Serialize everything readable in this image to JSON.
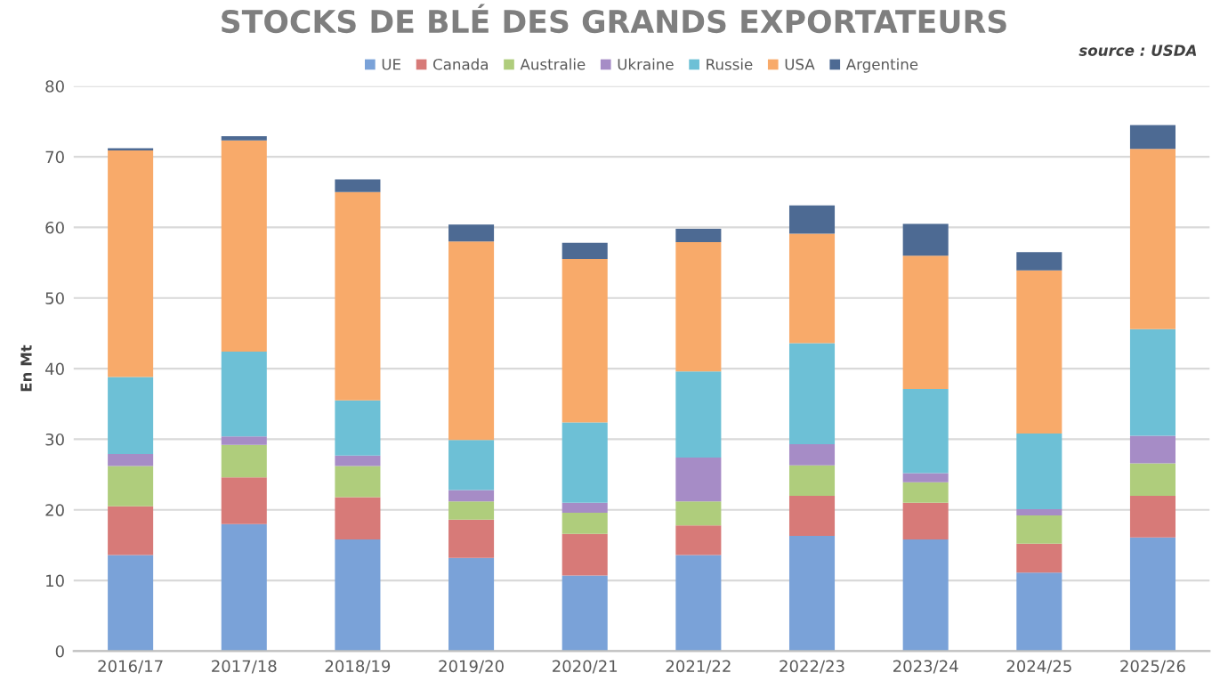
{
  "chart_data": {
    "type": "bar",
    "stacked": true,
    "title": "STOCKS DE BLÉ DES GRANDS EXPORTATEURS",
    "ylabel": "En Mt",
    "annotations": [
      "source : USDA"
    ],
    "categories": [
      "2016/17",
      "2017/18",
      "2018/19",
      "2019/20",
      "2020/21",
      "2021/22",
      "2022/23",
      "2023/24",
      "2024/25",
      "2025/26"
    ],
    "series": [
      {
        "name": "UE",
        "color": "#7aa2d8",
        "values": [
          13.6,
          18.0,
          15.8,
          13.2,
          10.7,
          13.6,
          16.3,
          15.8,
          11.1,
          16.1
        ]
      },
      {
        "name": "Canada",
        "color": "#d77a78",
        "values": [
          6.9,
          6.6,
          6.0,
          5.4,
          5.9,
          4.2,
          5.7,
          5.2,
          4.1,
          5.9
        ]
      },
      {
        "name": "Australie",
        "color": "#afcd7c",
        "values": [
          5.7,
          4.6,
          4.4,
          2.6,
          3.0,
          3.4,
          4.3,
          2.9,
          4.0,
          4.6
        ]
      },
      {
        "name": "Ukraine",
        "color": "#a68cc6",
        "values": [
          1.7,
          1.2,
          1.5,
          1.6,
          1.4,
          6.2,
          3.0,
          1.3,
          0.9,
          3.9
        ]
      },
      {
        "name": "Russie",
        "color": "#6dc0d6",
        "values": [
          10.9,
          12.0,
          7.8,
          7.1,
          11.4,
          12.2,
          14.3,
          11.9,
          10.7,
          15.1
        ]
      },
      {
        "name": "USA",
        "color": "#f8aa6a",
        "values": [
          32.1,
          29.9,
          29.5,
          28.1,
          23.1,
          18.3,
          15.5,
          18.9,
          23.1,
          25.5
        ]
      },
      {
        "name": "Argentine",
        "color": "#4d6a93",
        "values": [
          0.3,
          0.6,
          1.8,
          2.4,
          2.3,
          1.9,
          4.0,
          4.5,
          2.6,
          3.4
        ]
      }
    ],
    "ylim": [
      0,
      80
    ],
    "yticks": [
      0,
      10,
      20,
      30,
      40,
      50,
      60,
      70,
      80
    ],
    "grid": "y",
    "legend": "top"
  }
}
